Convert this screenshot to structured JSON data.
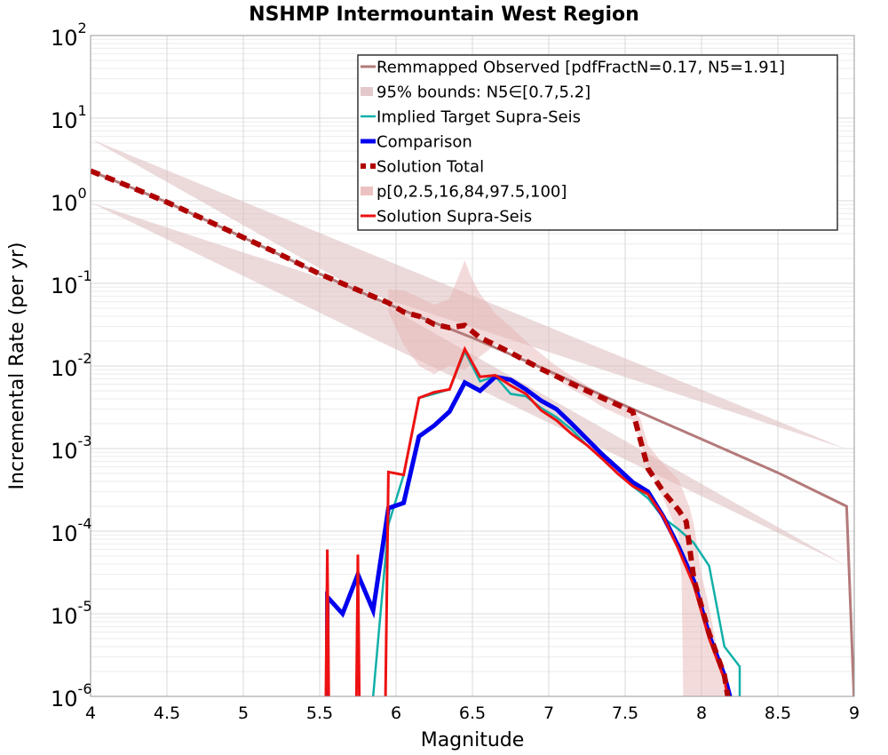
{
  "chart_data": {
    "type": "line",
    "title": "NSHMP Intermountain West Region",
    "xlabel": "Magnitude",
    "ylabel": "Incremental Rate (per yr)",
    "xlim": [
      4,
      9
    ],
    "ylim": [
      1e-06,
      100
    ],
    "yscale": "log",
    "grid": true,
    "legend_position": "top-right",
    "x_ticks": [
      "4",
      "4.5",
      "5",
      "5.5",
      "6",
      "6.5",
      "7",
      "7.5",
      "8",
      "8.5",
      "9"
    ],
    "y_ticks": [
      {
        "base": "10",
        "exp": "2",
        "value": 100
      },
      {
        "base": "10",
        "exp": "1",
        "value": 10
      },
      {
        "base": "10",
        "exp": "0",
        "value": 1
      },
      {
        "base": "10",
        "exp": "-1",
        "value": 0.1
      },
      {
        "base": "10",
        "exp": "-2",
        "value": 0.01
      },
      {
        "base": "10",
        "exp": "-3",
        "value": 0.001
      },
      {
        "base": "10",
        "exp": "-4",
        "value": 0.0001
      },
      {
        "base": "10",
        "exp": "-5",
        "value": 1e-05
      },
      {
        "base": "10",
        "exp": "-6",
        "value": 1e-06
      }
    ],
    "bands": [
      {
        "name": "95% bounds: N5∈[0.7,5.2]",
        "color": "#dcbcbe",
        "opacity": 0.55,
        "upper": [
          [
            4.0,
            5.6
          ],
          [
            8.95,
            0.00098
          ]
        ],
        "lower": [
          [
            4.0,
            0.95
          ],
          [
            8.95,
            3.8e-05
          ]
        ]
      },
      {
        "name": "p[0,2.5,16,84,97.5,100]",
        "color": "#e6b0b0",
        "opacity": 0.45,
        "upper": [
          [
            5.95,
            0.085
          ],
          [
            6.05,
            0.082
          ],
          [
            6.15,
            0.068
          ],
          [
            6.25,
            0.055
          ],
          [
            6.35,
            0.065
          ],
          [
            6.45,
            0.19
          ],
          [
            6.5,
            0.11
          ],
          [
            6.55,
            0.075
          ],
          [
            6.65,
            0.043
          ],
          [
            6.75,
            0.03
          ],
          [
            6.85,
            0.02
          ],
          [
            6.95,
            0.014
          ],
          [
            7.05,
            0.01
          ],
          [
            7.15,
            0.0075
          ],
          [
            7.25,
            0.0058
          ],
          [
            7.35,
            0.0045
          ],
          [
            7.45,
            0.0035
          ],
          [
            7.55,
            0.003
          ],
          [
            7.6,
            0.0023
          ],
          [
            7.65,
            0.0011
          ],
          [
            7.75,
            0.00065
          ],
          [
            7.85,
            0.00042
          ],
          [
            7.92,
            0.0002
          ],
          [
            7.95,
            0.00012
          ],
          [
            8.0,
            3e-05
          ],
          [
            8.05,
            1.2e-05
          ],
          [
            8.1,
            4e-06
          ],
          [
            8.15,
            1.5e-06
          ],
          [
            8.18,
            1e-06
          ]
        ],
        "lower": [
          [
            8.15,
            1e-06
          ],
          [
            8.1,
            1e-06
          ],
          [
            8.05,
            1e-06
          ],
          [
            8.0,
            1e-06
          ],
          [
            7.95,
            1e-06
          ],
          [
            7.9,
            1e-06
          ],
          [
            7.88,
            1e-06
          ],
          [
            7.87,
            2.5e-05
          ],
          [
            7.85,
            9e-05
          ],
          [
            7.75,
            0.00025
          ],
          [
            7.65,
            0.0006
          ],
          [
            7.6,
            0.0012
          ],
          [
            7.55,
            0.0022
          ],
          [
            7.45,
            0.0026
          ],
          [
            7.35,
            0.0032
          ],
          [
            7.25,
            0.0042
          ],
          [
            7.15,
            0.0052
          ],
          [
            7.05,
            0.007
          ],
          [
            6.95,
            0.009
          ],
          [
            6.85,
            0.012
          ],
          [
            6.75,
            0.016
          ],
          [
            6.65,
            0.018
          ],
          [
            6.55,
            0.013
          ],
          [
            6.45,
            0.009
          ],
          [
            6.35,
            0.01
          ],
          [
            6.25,
            0.008
          ],
          [
            6.15,
            0.01
          ],
          [
            6.05,
            0.018
          ],
          [
            5.95,
            0.045
          ]
        ]
      }
    ],
    "series": [
      {
        "name": "Remmapped Observed [pdfFractN=0.17, N5=1.91]",
        "color": "#b47a7a",
        "width": 3,
        "dash": "",
        "points": [
          [
            4.0,
            2.3
          ],
          [
            4.5,
            0.96
          ],
          [
            5.0,
            0.36
          ],
          [
            5.5,
            0.13
          ],
          [
            6.0,
            0.051
          ],
          [
            6.5,
            0.022
          ],
          [
            7.0,
            0.0087
          ],
          [
            7.5,
            0.0033
          ],
          [
            8.0,
            0.0013
          ],
          [
            8.5,
            0.00051
          ],
          [
            8.95,
            0.0002
          ],
          [
            9.0,
            8e-07
          ]
        ]
      },
      {
        "name": "Implied Target Supra-Seis",
        "color": "#10b0a8",
        "width": 2.5,
        "dash": "",
        "points": [
          [
            5.85,
            1e-06
          ],
          [
            5.95,
            0.00012
          ],
          [
            6.05,
            0.00048
          ],
          [
            6.15,
            0.0041
          ],
          [
            6.25,
            0.0046
          ],
          [
            6.35,
            0.0052
          ],
          [
            6.45,
            0.015
          ],
          [
            6.55,
            0.0065
          ],
          [
            6.65,
            0.0075
          ],
          [
            6.75,
            0.0046
          ],
          [
            6.85,
            0.0043
          ],
          [
            6.95,
            0.0031
          ],
          [
            7.05,
            0.0024
          ],
          [
            7.15,
            0.0017
          ],
          [
            7.25,
            0.0011
          ],
          [
            7.35,
            0.00075
          ],
          [
            7.45,
            0.0005
          ],
          [
            7.55,
            0.00035
          ],
          [
            7.65,
            0.00025
          ],
          [
            7.75,
            0.000145
          ],
          [
            7.85,
            0.000105
          ],
          [
            7.95,
            7.2e-05
          ],
          [
            8.05,
            3.8e-05
          ],
          [
            8.15,
            4e-06
          ],
          [
            8.25,
            2.3e-06
          ],
          [
            8.25,
            8e-07
          ]
        ]
      },
      {
        "name": "Comparison",
        "color": "#0000ee",
        "width": 5,
        "dash": "",
        "points": [
          [
            5.55,
            8e-07
          ],
          [
            5.55,
            1.6e-05
          ],
          [
            5.65,
            1e-05
          ],
          [
            5.75,
            3e-05
          ],
          [
            5.85,
            1.1e-05
          ],
          [
            5.95,
            0.00019
          ],
          [
            6.05,
            0.00022
          ],
          [
            6.15,
            0.0014
          ],
          [
            6.25,
            0.0019
          ],
          [
            6.35,
            0.0028
          ],
          [
            6.45,
            0.0063
          ],
          [
            6.55,
            0.005
          ],
          [
            6.65,
            0.0074
          ],
          [
            6.75,
            0.0068
          ],
          [
            6.85,
            0.0052
          ],
          [
            6.95,
            0.0038
          ],
          [
            7.05,
            0.003
          ],
          [
            7.15,
            0.002
          ],
          [
            7.25,
            0.0013
          ],
          [
            7.35,
            0.00085
          ],
          [
            7.45,
            0.00058
          ],
          [
            7.55,
            0.00039
          ],
          [
            7.65,
            0.0003
          ],
          [
            7.75,
            0.00015
          ],
          [
            7.85,
            6.5e-05
          ],
          [
            7.95,
            2.5e-05
          ],
          [
            8.05,
            5.5e-06
          ],
          [
            8.15,
            1.8e-06
          ],
          [
            8.2,
            8e-07
          ]
        ]
      },
      {
        "name": "Solution Supra-Seis",
        "color": "#ee1111",
        "width": 3,
        "dash": "",
        "points": [
          [
            5.54,
            8e-07
          ],
          [
            5.55,
            6e-05
          ],
          [
            5.56,
            8e-07
          ],
          [
            5.74,
            8e-07
          ],
          [
            5.75,
            5.2e-05
          ],
          [
            5.76,
            8e-07
          ],
          [
            5.93,
            8e-07
          ],
          [
            5.95,
            0.00052
          ],
          [
            6.05,
            0.00048
          ],
          [
            6.15,
            0.0041
          ],
          [
            6.25,
            0.0048
          ],
          [
            6.35,
            0.0052
          ],
          [
            6.45,
            0.016
          ],
          [
            6.55,
            0.0074
          ],
          [
            6.65,
            0.0077
          ],
          [
            6.75,
            0.0058
          ],
          [
            6.85,
            0.0046
          ],
          [
            6.95,
            0.0029
          ],
          [
            7.05,
            0.0022
          ],
          [
            7.15,
            0.0015
          ],
          [
            7.25,
            0.0011
          ],
          [
            7.35,
            0.00075
          ],
          [
            7.45,
            0.0005
          ],
          [
            7.55,
            0.00035
          ],
          [
            7.65,
            0.00028
          ],
          [
            7.75,
            0.00015
          ],
          [
            7.85,
            6e-05
          ],
          [
            7.95,
            2.2e-05
          ],
          [
            8.05,
            5e-06
          ],
          [
            8.15,
            1.6e-06
          ],
          [
            8.18,
            8e-07
          ]
        ]
      },
      {
        "name": "Solution Total",
        "color": "#b00000",
        "width": 6,
        "dash": "11,7",
        "points": [
          [
            4.0,
            2.3
          ],
          [
            4.25,
            1.5
          ],
          [
            4.5,
            0.96
          ],
          [
            4.75,
            0.59
          ],
          [
            5.0,
            0.36
          ],
          [
            5.25,
            0.22
          ],
          [
            5.5,
            0.13
          ],
          [
            5.75,
            0.083
          ],
          [
            5.95,
            0.058
          ],
          [
            6.05,
            0.045
          ],
          [
            6.15,
            0.04
          ],
          [
            6.25,
            0.032
          ],
          [
            6.35,
            0.029
          ],
          [
            6.45,
            0.031
          ],
          [
            6.55,
            0.022
          ],
          [
            6.65,
            0.018
          ],
          [
            6.75,
            0.0145
          ],
          [
            6.85,
            0.0115
          ],
          [
            6.95,
            0.0092
          ],
          [
            7.05,
            0.0075
          ],
          [
            7.15,
            0.0061
          ],
          [
            7.25,
            0.005
          ],
          [
            7.35,
            0.0041
          ],
          [
            7.45,
            0.0034
          ],
          [
            7.55,
            0.0028
          ],
          [
            7.65,
            0.00057
          ],
          [
            7.75,
            0.0003
          ],
          [
            7.85,
            0.00018
          ],
          [
            7.9,
            0.00013
          ],
          [
            7.95,
            2.6e-05
          ],
          [
            8.05,
            5.8e-06
          ],
          [
            8.15,
            1.8e-06
          ],
          [
            8.18,
            8e-07
          ]
        ]
      }
    ],
    "legend": [
      {
        "label": "Remmapped Observed [pdfFractN=0.17, N5=1.91]",
        "kind": "line",
        "color": "#b47a7a",
        "width": 3,
        "dash": ""
      },
      {
        "label": "95% bounds: N5∈[0.7,5.2]",
        "kind": "band",
        "color": "#dcbcbe",
        "width": 10,
        "dash": ""
      },
      {
        "label": "Implied Target Supra-Seis",
        "kind": "line",
        "color": "#10b0a8",
        "width": 2.5,
        "dash": ""
      },
      {
        "label": "Comparison",
        "kind": "line",
        "color": "#0000ee",
        "width": 5,
        "dash": ""
      },
      {
        "label": "Solution Total",
        "kind": "line",
        "color": "#b00000",
        "width": 6,
        "dash": "6,5"
      },
      {
        "label": "p[0,2.5,16,84,97.5,100]",
        "kind": "band",
        "color": "#e6b0b0",
        "width": 10,
        "dash": ""
      },
      {
        "label": "Solution Supra-Seis",
        "kind": "line",
        "color": "#ee1111",
        "width": 3,
        "dash": ""
      }
    ]
  }
}
